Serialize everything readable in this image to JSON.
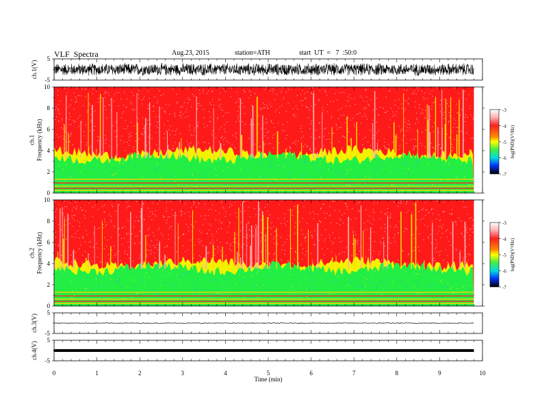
{
  "header": {
    "title": "VLF  Spectra",
    "date": "Aug.23, 2015",
    "station": "station=ATH",
    "start": "start  UT  =   7  :50:0"
  },
  "colors": {
    "spectro_background": "#ff1a1a",
    "spectro_green": "#22ee44",
    "spectro_yellow": "#f2f200",
    "colorbar_top": "#ffffff",
    "colorbar_bottom": "#000000"
  },
  "chart_data": [
    {
      "type": "line",
      "panel": "ch1-waveform",
      "ylabel": "ch.1(V)",
      "yticks": [
        "5",
        "-5"
      ],
      "ylim": [
        -5,
        5
      ],
      "x_range": [
        0,
        9.8
      ],
      "amplitude": 3.2
    },
    {
      "type": "heatmap",
      "panel": "ch1-spectrogram",
      "ylabel": "ch.1\nFrequency  (kHz)",
      "ylabel_lines": [
        "ch.1",
        "Frequency  (kHz)"
      ],
      "yticks": [
        "10",
        "8",
        "6",
        "4",
        "2",
        "0"
      ],
      "ylim": [
        0,
        10
      ],
      "x_range": [
        0,
        9.8
      ],
      "green_band_top_khz": 3.8,
      "colorbar": {
        "label": "log(PSD)(V²/Hz)",
        "ticks": [
          "-3",
          "-4",
          "-5",
          "-6",
          "-7"
        ],
        "range": [
          -7,
          -3
        ]
      }
    },
    {
      "type": "heatmap",
      "panel": "ch2-spectrogram",
      "ylabel": "ch.2\nFrequency  (kHz)",
      "ylabel_lines": [
        "ch.2",
        "Frequency  (kHz)"
      ],
      "yticks": [
        "10",
        "8",
        "6",
        "4",
        "2",
        "0"
      ],
      "ylim": [
        0,
        10
      ],
      "x_range": [
        0,
        9.8
      ],
      "green_band_top_khz": 4.0,
      "colorbar": {
        "label": "log(PSD)(V²/Hz)",
        "ticks": [
          "-3",
          "-4",
          "-5",
          "-6",
          "-7"
        ],
        "range": [
          -7,
          -3
        ]
      }
    },
    {
      "type": "line",
      "panel": "ch3-waveform",
      "ylabel": "ch.3(V)",
      "yticks": [
        "5",
        "-5"
      ],
      "ylim": [
        -5,
        5
      ],
      "x_range": [
        0,
        9.8
      ],
      "level": 0,
      "amplitude": 0.15
    },
    {
      "type": "line",
      "panel": "ch4-waveform",
      "ylabel": "ch.4(V)",
      "yticks": [
        "5",
        "-5"
      ],
      "ylim": [
        -5,
        5
      ],
      "x_range": [
        0,
        9.8
      ],
      "level": 0,
      "amplitude": 0
    }
  ],
  "xaxis": {
    "label": "Time  (min)",
    "ticks": [
      "0",
      "1",
      "2",
      "3",
      "4",
      "5",
      "6",
      "7",
      "8",
      "9",
      "10"
    ],
    "xlim": [
      0,
      10
    ]
  }
}
